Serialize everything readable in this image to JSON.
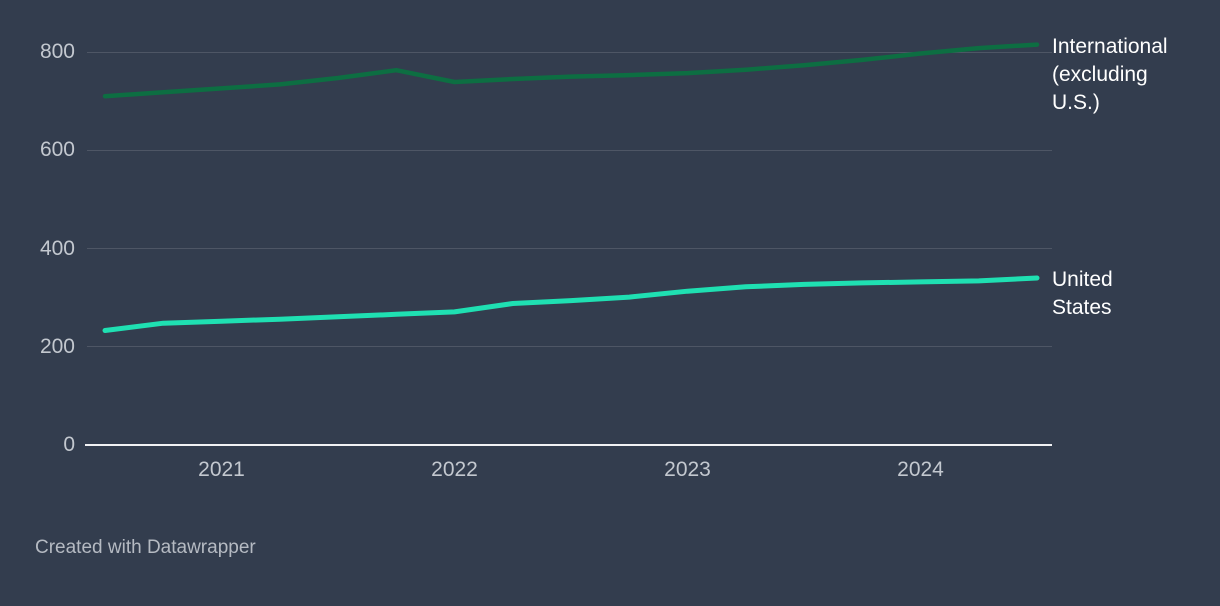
{
  "chart_data": {
    "type": "line",
    "x": [
      2020.5,
      2020.75,
      2021,
      2021.25,
      2021.5,
      2021.75,
      2022,
      2022.25,
      2022.5,
      2022.75,
      2023,
      2023.25,
      2023.5,
      2023.75,
      2024,
      2024.25,
      2024.5
    ],
    "series": [
      {
        "name": "International (excluding U.S.)",
        "color": "#0d6e42",
        "values": [
          710,
          718,
          726,
          734,
          747,
          763,
          739,
          745,
          750,
          753,
          757,
          764,
          773,
          784,
          797,
          808,
          815
        ]
      },
      {
        "name": "United States",
        "color": "#1fe0b2",
        "values": [
          233,
          248,
          252,
          256,
          261,
          266,
          271,
          288,
          294,
          301,
          313,
          322,
          327,
          330,
          332,
          334,
          340
        ]
      }
    ],
    "title": "",
    "xlabel": "",
    "ylabel": "",
    "xlim": [
      2020.5,
      2024.5
    ],
    "ylim": [
      0,
      800
    ],
    "x_tick_values": [
      2021,
      2022,
      2023,
      2024
    ],
    "x_tick_labels": [
      "2021",
      "2022",
      "2023",
      "2024"
    ],
    "y_tick_values": [
      0,
      200,
      400,
      600,
      800
    ],
    "y_tick_labels": [
      "0",
      "200",
      "400",
      "600",
      "800"
    ],
    "grid": "horizontal",
    "legend_position": "right-of-line-ends"
  },
  "colors": {
    "background": "#333d4e",
    "gridline": "#4e5665",
    "axis_line": "#f1f2f4",
    "tick_label": "#c3c8cf",
    "series_label": "#ffffff",
    "attribution": "#b5bac2"
  },
  "footer": {
    "attribution": "Created with Datawrapper"
  }
}
